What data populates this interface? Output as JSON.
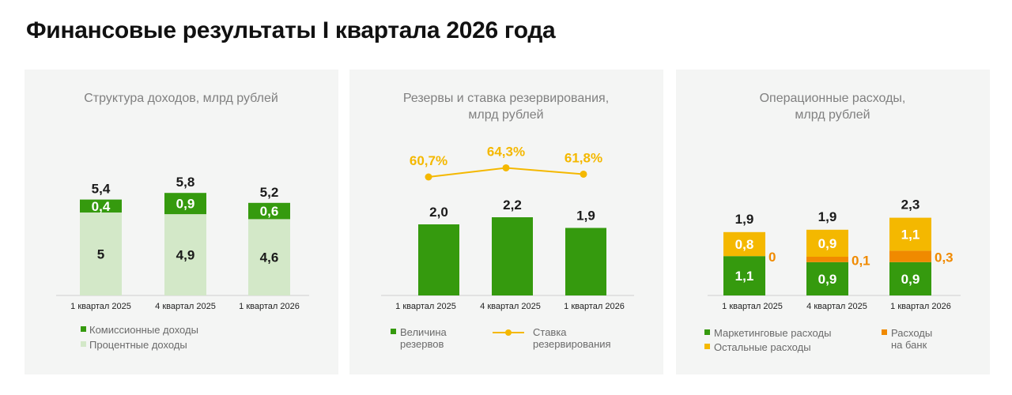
{
  "title": "Финансовые результаты I квартала 2026 года",
  "colors": {
    "dark_green": "#359a0e",
    "light_green": "#d3e8c8",
    "yellow": "#f4b800",
    "orange": "#f08a00",
    "panel_bg": "#f4f5f4"
  },
  "chart_data": [
    {
      "type": "bar",
      "stacked": true,
      "title": [
        "Структура доходов, млрд рублей"
      ],
      "categories": [
        "1 квартал 2025",
        "4 квартал 2025",
        "1 квартал 2026"
      ],
      "totals": [
        "5,4",
        "5,8",
        "5,2"
      ],
      "series": [
        {
          "name": "Процентные доходы",
          "values": [
            5,
            4.9,
            4.6
          ],
          "labels": [
            "5",
            "4,9",
            "4,6"
          ]
        },
        {
          "name": "Комиссионные доходы",
          "values": [
            0.4,
            0.9,
            0.6
          ],
          "labels": [
            "0,4",
            "0,9",
            "0,6"
          ]
        }
      ],
      "legend": [
        "Комиссионные доходы",
        "Процентные доходы"
      ]
    },
    {
      "type": "bar",
      "title": [
        "Резервы и ставка резервирования,",
        "млрд рублей"
      ],
      "categories": [
        "1 квартал 2025",
        "4 квартал 2025",
        "1 квартал 2026"
      ],
      "series": [
        {
          "name": "Величина резервов",
          "values": [
            2.0,
            2.2,
            1.9
          ],
          "labels": [
            "2,0",
            "2,2",
            "1,9"
          ]
        },
        {
          "name": "Ставка резервирования",
          "type": "line",
          "values": [
            60.7,
            64.3,
            61.8
          ],
          "labels": [
            "60,7%",
            "64,3%",
            "61,8%"
          ]
        }
      ],
      "legend": [
        {
          "lines": [
            "Величина",
            "резервов"
          ]
        },
        {
          "lines": [
            "Ставка",
            "резервирования"
          ]
        }
      ]
    },
    {
      "type": "bar",
      "stacked": true,
      "title": [
        "Операционные расходы,",
        "млрд рублей"
      ],
      "categories": [
        "1 квартал 2025",
        "4 квартал 2025",
        "1 квартал 2026"
      ],
      "totals": [
        "1,9",
        "1,9",
        "2,3"
      ],
      "series": [
        {
          "name": "Маркетинговые расходы",
          "values": [
            1.1,
            0.9,
            0.9
          ],
          "labels": [
            "1,1",
            "0,9",
            "0,9"
          ]
        },
        {
          "name": "Расходы на банк",
          "values": [
            0,
            0.1,
            0.3
          ],
          "labels": [
            "0",
            "0,1",
            "0,3"
          ]
        },
        {
          "name": "Остальные расходы",
          "values": [
            0.8,
            0.9,
            1.1
          ],
          "labels": [
            "0,8",
            "0,9",
            "1,1"
          ]
        }
      ],
      "legend": [
        {
          "lines": [
            "Маркетинговые расходы"
          ]
        },
        {
          "lines": [
            "Остальные расходы"
          ]
        },
        {
          "lines": [
            "Расходы",
            "на банк"
          ]
        }
      ]
    }
  ]
}
